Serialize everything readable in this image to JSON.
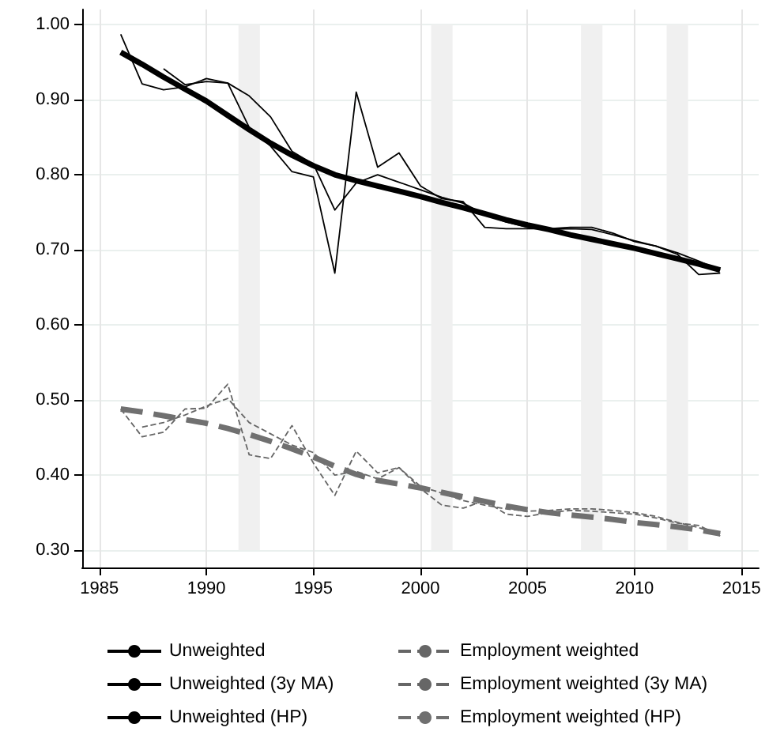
{
  "chart_data": {
    "type": "line",
    "x": [
      1986,
      1987,
      1988,
      1989,
      1990,
      1991,
      1992,
      1993,
      1994,
      1995,
      1996,
      1997,
      1998,
      1999,
      2000,
      2001,
      2002,
      2003,
      2004,
      2005,
      2006,
      2007,
      2008,
      2009,
      2010,
      2011,
      2012,
      2013,
      2014
    ],
    "series": [
      {
        "name": "Unweighted",
        "color": "#000000",
        "line_style": "solid",
        "values": [
          0.987,
          0.921,
          0.913,
          0.917,
          0.928,
          0.922,
          0.863,
          0.838,
          0.804,
          0.797,
          0.669,
          0.91,
          0.81,
          0.829,
          0.785,
          0.768,
          0.764,
          0.73,
          0.728,
          0.728,
          0.728,
          0.73,
          0.73,
          0.722,
          0.711,
          0.705,
          0.694,
          0.667,
          0.669
        ]
      },
      {
        "name": "Employment weighted",
        "color": "#666666",
        "line_style": "dashed",
        "values": [
          0.488,
          0.451,
          0.457,
          0.488,
          0.489,
          0.521,
          0.427,
          0.422,
          0.466,
          0.416,
          0.373,
          0.432,
          0.403,
          0.41,
          0.382,
          0.36,
          0.356,
          0.366,
          0.348,
          0.345,
          0.35,
          0.353,
          0.352,
          0.35,
          0.348,
          0.343,
          0.336,
          0.333,
          0.319
        ]
      },
      {
        "name": "Unweighted (3y MA)",
        "color": "#000000",
        "line_style": "solid",
        "values": [
          null,
          null,
          0.941,
          0.92,
          0.924,
          0.922,
          0.905,
          0.877,
          0.831,
          0.814,
          0.753,
          0.789,
          0.8,
          0.79,
          0.78,
          0.77,
          0.762,
          0.747,
          0.737,
          0.73,
          0.727,
          0.728,
          0.727,
          0.72,
          0.712,
          0.705,
          0.696,
          0.685,
          0.673
        ]
      },
      {
        "name": "Employment weighted (3y MA)",
        "color": "#666666",
        "line_style": "dashed",
        "values": [
          null,
          0.464,
          0.47,
          0.48,
          0.492,
          0.502,
          0.47,
          0.455,
          0.44,
          0.43,
          0.4,
          0.405,
          0.395,
          0.41,
          0.385,
          0.376,
          0.366,
          0.36,
          0.355,
          0.352,
          0.353,
          0.355,
          0.355,
          0.353,
          0.35,
          0.345,
          0.337,
          0.33,
          0.322
        ]
      },
      {
        "name": "Unweighted (HP)",
        "color": "#000000",
        "line_style": "solid",
        "values": [
          0.963,
          0.947,
          0.93,
          0.914,
          0.898,
          0.879,
          0.86,
          0.842,
          0.826,
          0.812,
          0.8,
          0.792,
          0.785,
          0.778,
          0.771,
          0.763,
          0.756,
          0.748,
          0.74,
          0.733,
          0.727,
          0.72,
          0.714,
          0.708,
          0.702,
          0.695,
          0.688,
          0.681,
          0.673
        ]
      },
      {
        "name": "Employment weighted (HP)",
        "color": "#707070",
        "line_style": "dashed",
        "values": [
          0.488,
          0.484,
          0.479,
          0.474,
          0.469,
          0.462,
          0.454,
          0.445,
          0.435,
          0.424,
          0.412,
          0.401,
          0.393,
          0.388,
          0.383,
          0.377,
          0.371,
          0.365,
          0.359,
          0.354,
          0.35,
          0.347,
          0.344,
          0.341,
          0.337,
          0.334,
          0.331,
          0.327,
          0.322
        ]
      }
    ],
    "bands": [
      {
        "axis": "x",
        "from": 1991.5,
        "to": 1992.5,
        "color": "#f0f0f0"
      },
      {
        "axis": "x",
        "from": 2000.5,
        "to": 2001.5,
        "color": "#f0f0f0"
      },
      {
        "axis": "x",
        "from": 2007.5,
        "to": 2008.5,
        "color": "#f0f0f0"
      },
      {
        "axis": "x",
        "from": 2011.5,
        "to": 2012.5,
        "color": "#f0f0f0"
      }
    ],
    "xlim": [
      1984.2,
      2015.8
    ],
    "xticks": [
      1985,
      1990,
      1995,
      2000,
      2005,
      2010,
      2015
    ],
    "ylim": [
      0.277,
      1.02
    ],
    "yticks": [
      {
        "value": 0.3,
        "label": "0.30"
      },
      {
        "value": 0.4,
        "label": "0.40"
      },
      {
        "value": 0.5,
        "label": "0.50"
      },
      {
        "value": 0.6,
        "label": "0.60"
      },
      {
        "value": 0.7,
        "label": "0.70"
      },
      {
        "value": 0.8,
        "label": "0.80"
      },
      {
        "value": 0.9,
        "label": "0.90"
      },
      {
        "value": 1.0,
        "label": "1.00"
      }
    ],
    "grid": true,
    "legend": "bottom",
    "marker": "none"
  }
}
